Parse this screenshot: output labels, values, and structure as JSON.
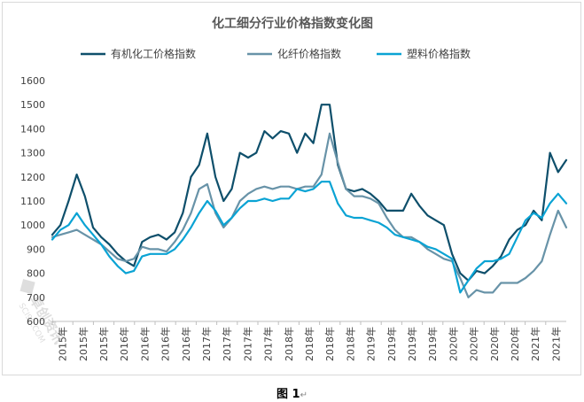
{
  "caption": "图 1",
  "caption_mark": "↵",
  "colors": {
    "axis": "#bfbfbf",
    "text": "#404040",
    "title": "#595959"
  },
  "chart_data": {
    "type": "line",
    "title": "化工细分行业价格指数变化图",
    "xlabel": "",
    "ylabel": "",
    "ylim": [
      600,
      1600
    ],
    "yticks": [
      600,
      700,
      800,
      900,
      1000,
      1100,
      1200,
      1300,
      1400,
      1500,
      1600
    ],
    "legend_position": "top",
    "grid": false,
    "xticks": [
      "2015年",
      "2015年",
      "2015年",
      "2016年",
      "2016年",
      "2016年",
      "2016年",
      "2017年",
      "2017年",
      "2017年",
      "2017年",
      "2018年",
      "2018年",
      "2018年",
      "2018年",
      "2019年",
      "2019年",
      "2019年",
      "2019年",
      "2020年",
      "2020年",
      "2020年",
      "2020年",
      "2021年",
      "2021年"
    ],
    "x": [
      2015.0,
      2015.1,
      2015.2,
      2015.3,
      2015.4,
      2015.5,
      2015.6,
      2015.7,
      2015.8,
      2015.9,
      2016.0,
      2016.1,
      2016.2,
      2016.3,
      2016.4,
      2016.5,
      2016.6,
      2016.7,
      2016.8,
      2016.9,
      2017.0,
      2017.1,
      2017.2,
      2017.3,
      2017.4,
      2017.5,
      2017.6,
      2017.7,
      2017.8,
      2017.9,
      2018.0,
      2018.1,
      2018.2,
      2018.3,
      2018.4,
      2018.5,
      2018.6,
      2018.7,
      2018.8,
      2018.9,
      2019.0,
      2019.1,
      2019.2,
      2019.3,
      2019.4,
      2019.5,
      2019.6,
      2019.7,
      2019.8,
      2019.9,
      2020.0,
      2020.1,
      2020.2,
      2020.3,
      2020.4,
      2020.5,
      2020.6,
      2020.7,
      2020.8,
      2020.9,
      2021.0,
      2021.1,
      2021.2,
      2021.3
    ],
    "series": [
      {
        "name": "有机化工价格指数",
        "color": "#0e4f6b",
        "values": [
          960,
          1000,
          1100,
          1210,
          1120,
          990,
          950,
          920,
          880,
          850,
          830,
          930,
          950,
          960,
          940,
          970,
          1050,
          1200,
          1250,
          1380,
          1200,
          1100,
          1150,
          1300,
          1280,
          1300,
          1390,
          1360,
          1390,
          1380,
          1300,
          1380,
          1340,
          1500,
          1500,
          1250,
          1150,
          1140,
          1150,
          1130,
          1100,
          1060,
          1060,
          1060,
          1130,
          1080,
          1040,
          1020,
          1000,
          880,
          800,
          770,
          810,
          800,
          830,
          870,
          940,
          980,
          1000,
          1060,
          1020,
          1300,
          1220,
          1270
        ]
      },
      {
        "name": "化纤价格指数",
        "color": "#6893a8",
        "values": [
          950,
          960,
          970,
          980,
          960,
          940,
          920,
          890,
          860,
          850,
          860,
          910,
          900,
          900,
          890,
          930,
          980,
          1050,
          1150,
          1170,
          1050,
          990,
          1030,
          1100,
          1130,
          1150,
          1160,
          1150,
          1160,
          1160,
          1150,
          1160,
          1160,
          1210,
          1380,
          1260,
          1150,
          1120,
          1120,
          1110,
          1090,
          1030,
          980,
          950,
          950,
          930,
          900,
          880,
          860,
          850,
          780,
          700,
          730,
          720,
          720,
          760,
          760,
          760,
          780,
          810,
          850,
          960,
          1060,
          990
        ]
      },
      {
        "name": "塑料价格指数",
        "color": "#0aa3d4",
        "values": [
          940,
          980,
          1000,
          1050,
          1000,
          960,
          920,
          870,
          830,
          800,
          810,
          870,
          880,
          880,
          880,
          900,
          940,
          990,
          1050,
          1100,
          1060,
          1000,
          1030,
          1070,
          1100,
          1100,
          1110,
          1100,
          1110,
          1110,
          1150,
          1140,
          1150,
          1180,
          1180,
          1090,
          1040,
          1030,
          1030,
          1020,
          1010,
          990,
          960,
          950,
          940,
          930,
          910,
          900,
          880,
          860,
          720,
          770,
          820,
          850,
          850,
          860,
          880,
          950,
          1020,
          1050,
          1030,
          1090,
          1130,
          1090
        ]
      }
    ]
  }
}
